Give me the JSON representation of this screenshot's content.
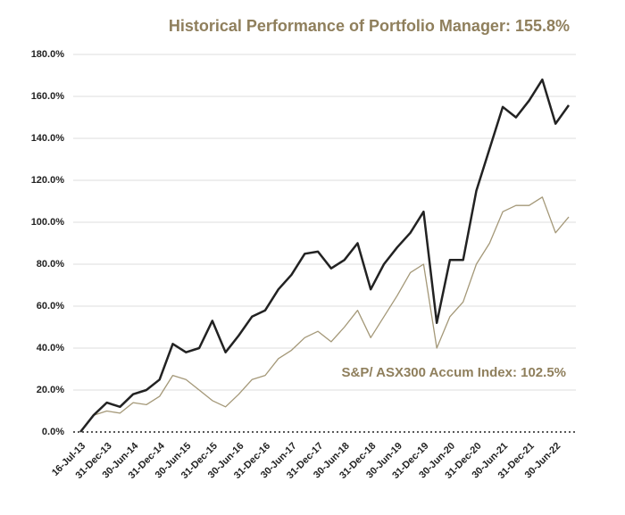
{
  "chart_data": {
    "type": "line",
    "title": "Historical Performance of Portfolio Manager: 155.8%",
    "annotation": "S&P/ ASX300 Accum Index: 102.5%",
    "categories": [
      "16-Jul-13",
      null,
      "31-Dec-13",
      null,
      "30-Jun-14",
      null,
      "31-Dec-14",
      null,
      "30-Jun-15",
      null,
      "31-Dec-15",
      null,
      "30-Jun-16",
      null,
      "31-Dec-16",
      null,
      "30-Jun-17",
      null,
      "31-Dec-17",
      null,
      "30-Jun-18",
      null,
      "31-Dec-18",
      null,
      "30-Jun-19",
      null,
      "31-Dec-19",
      null,
      "30-Jun-20",
      null,
      "31-Dec-20",
      null,
      "30-Jun-21",
      null,
      "31-Dec-21",
      null,
      "30-Jun-22",
      null
    ],
    "series": [
      {
        "color": "#222222",
        "values": [
          0,
          8,
          14,
          12,
          18,
          20,
          25,
          42,
          38,
          40,
          53,
          38,
          46,
          55,
          58,
          68,
          75,
          85,
          86,
          78,
          82,
          90,
          68,
          80,
          88,
          95,
          105,
          52,
          82,
          82,
          115,
          135,
          155,
          150,
          158,
          168,
          147,
          155.8
        ]
      },
      {
        "color": "#a49878",
        "values": [
          0,
          8,
          10,
          9,
          14,
          13,
          17,
          27,
          25,
          20,
          15,
          12,
          18,
          25,
          27,
          35,
          39,
          45,
          48,
          43,
          50,
          58,
          45,
          55,
          65,
          76,
          80,
          40,
          55,
          62,
          80,
          90,
          105,
          108,
          108,
          112,
          95,
          102.5
        ]
      }
    ],
    "ylim": [
      0,
      180
    ],
    "yticks": [
      {
        "value": 0,
        "label": "0.0%"
      },
      {
        "value": 20,
        "label": "20.0%"
      },
      {
        "value": 40,
        "label": "40.0%"
      },
      {
        "value": 60,
        "label": "60.0%"
      },
      {
        "value": 80,
        "label": "80.0%"
      },
      {
        "value": 100,
        "label": "100.0%"
      },
      {
        "value": 120,
        "label": "120.0%"
      },
      {
        "value": 140,
        "label": "140.0%"
      },
      {
        "value": 160,
        "label": "160.0%"
      },
      {
        "value": 180,
        "label": "180.0%"
      }
    ],
    "grid": true
  }
}
